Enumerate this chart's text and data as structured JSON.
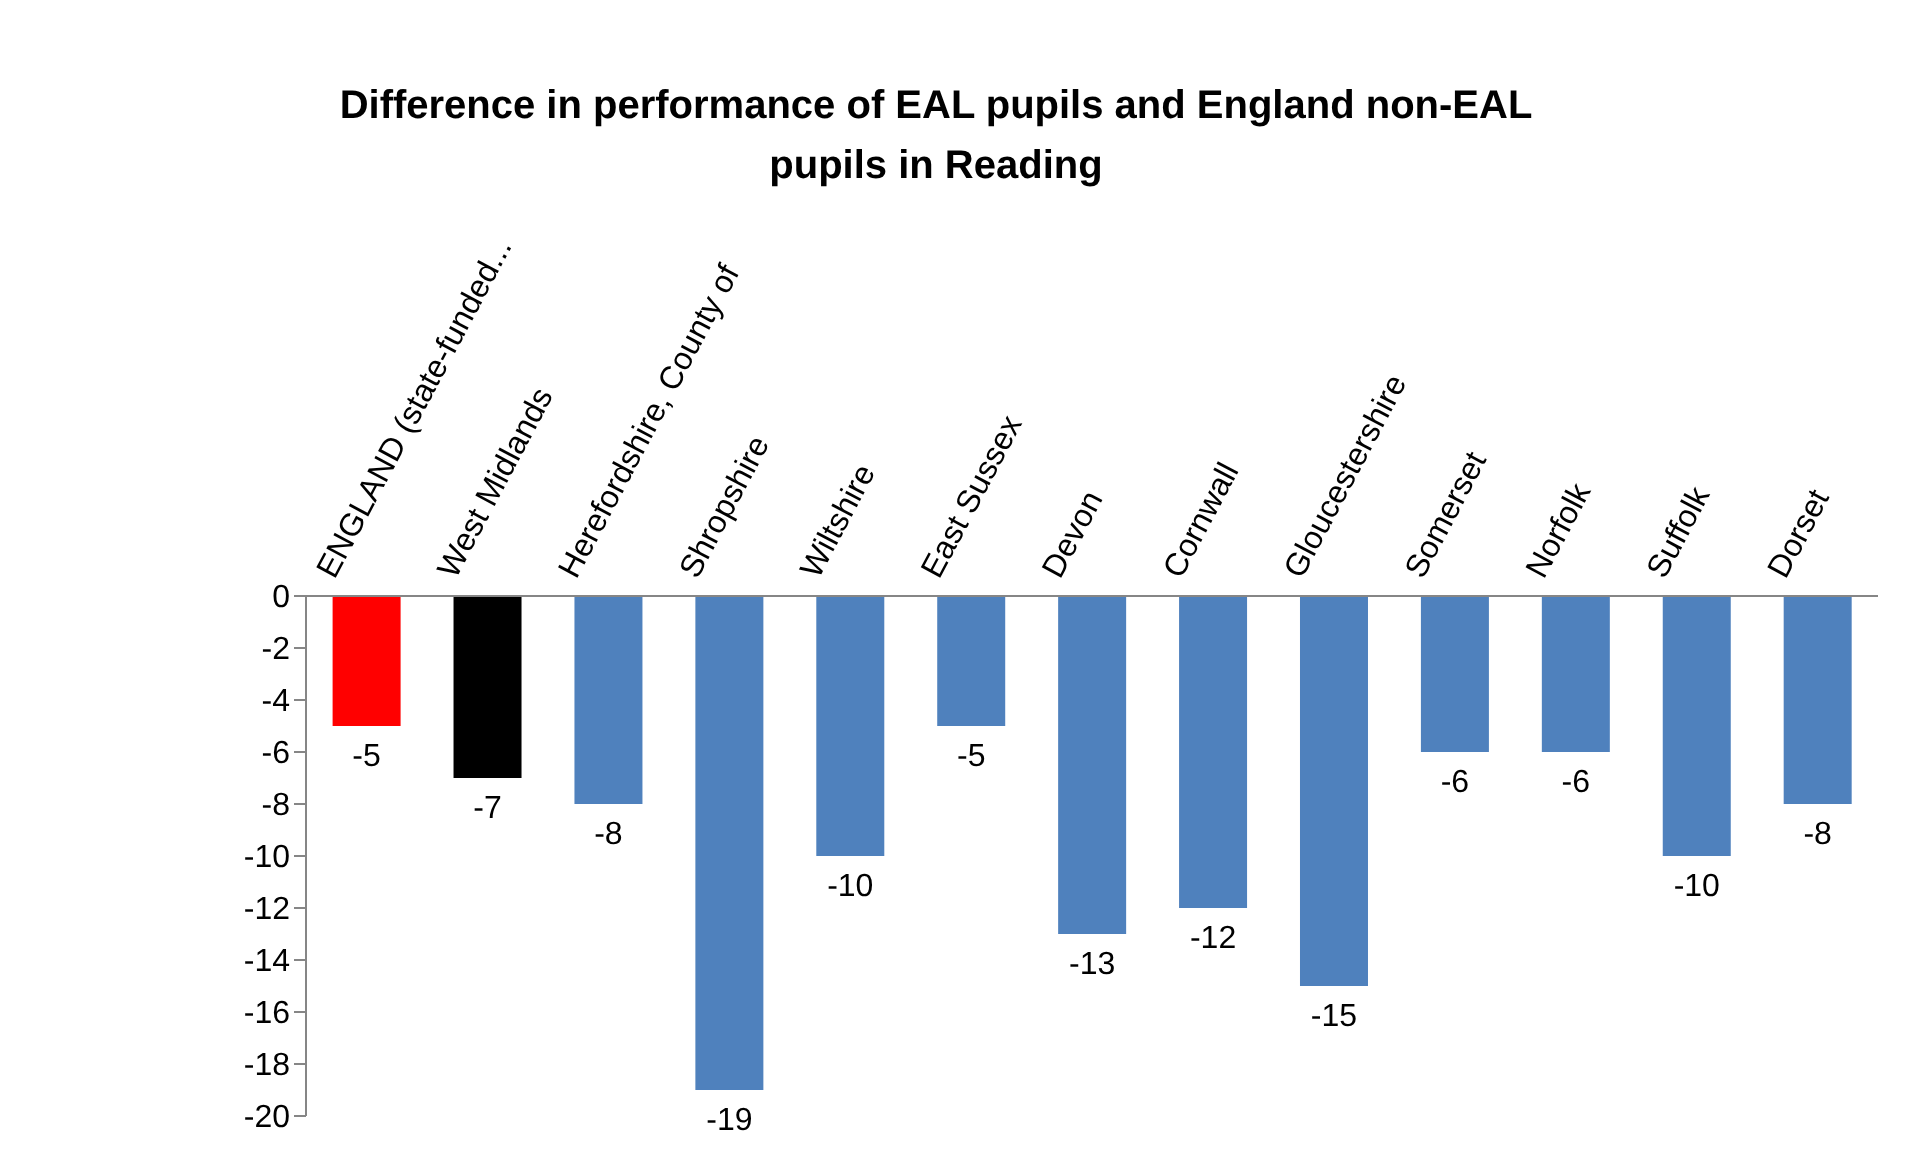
{
  "chart_data": {
    "type": "bar",
    "title": "Difference in performance of EAL pupils and England non-EAL pupils in Reading",
    "categories": [
      "ENGLAND (state-funded...",
      "West Midlands",
      "Herefordshire, County of",
      "Shropshire",
      "Wiltshire",
      "East Sussex",
      "Devon",
      "Cornwall",
      "Gloucestershire",
      "Somerset",
      "Norfolk",
      "Suffolk",
      "Dorset"
    ],
    "values": [
      -5,
      -7,
      -8,
      -19,
      -10,
      -5,
      -13,
      -12,
      -15,
      -6,
      -6,
      -10,
      -8
    ],
    "colors": [
      "#ff0000",
      "#000000",
      "#4f81bd",
      "#4f81bd",
      "#4f81bd",
      "#4f81bd",
      "#4f81bd",
      "#4f81bd",
      "#4f81bd",
      "#4f81bd",
      "#4f81bd",
      "#4f81bd",
      "#4f81bd"
    ],
    "ylim": [
      -20,
      0
    ],
    "yticks": [
      0,
      -2,
      -4,
      -6,
      -8,
      -10,
      -12,
      -14,
      -16,
      -18,
      -20
    ],
    "data_labels": true
  }
}
